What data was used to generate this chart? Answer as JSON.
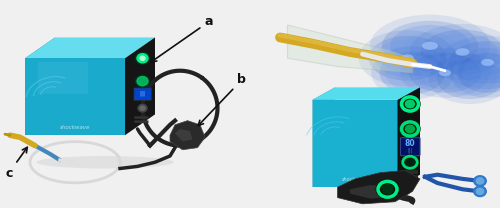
{
  "figure_width": 5.0,
  "figure_height": 2.08,
  "dpi": 100,
  "bg_color": "#f0f0f0",
  "label_a_text": "a",
  "label_b_text": "b",
  "label_c_text": "c",
  "label_fontsize": 9,
  "label_color": "#111111",
  "arrow_color": "#111111",
  "left_bg": "#f2f2f2",
  "right_bg": "#f2f2f2",
  "gen_blue_main": "#1aabcc",
  "gen_blue_light": "#55ccee",
  "gen_blue_dark": "#0088aa",
  "gen_panel_dark": "#1c1c1c",
  "gen_panel_mid": "#2a2a2a",
  "cable_dark": "#222222",
  "cable_mid": "#3a3a3a",
  "catheter_white": "#e8e8e8",
  "catheter_yellow": "#d4a820",
  "catheter_blue": "#4488bb",
  "shock_blue1": "#3366cc",
  "shock_blue2": "#6699ff",
  "shock_blue3": "#aaccff",
  "connector_green": "#00ee88"
}
